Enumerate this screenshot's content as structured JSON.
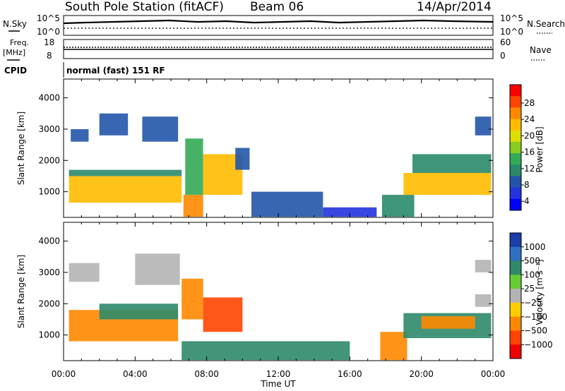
{
  "header": {
    "station": "South Pole Station (fitACF)",
    "beam": "Beam 06",
    "date": "14/Apr/2014"
  },
  "params": {
    "nsky_label": "N.Sky",
    "nsearch_label": "N.Search",
    "nsky_ticks": [
      "10^5",
      "10^0"
    ],
    "nsearch_ticks": [
      "10^5",
      "10^0"
    ],
    "freq_label_1": "Freq.",
    "freq_label_2": "[MHz]",
    "freq_ticks": [
      "18",
      "8"
    ],
    "nave_label": "Nave",
    "nave_ticks": [
      "60",
      "0"
    ],
    "cpid_label": "CPID",
    "cpid_value": "normal (fast) 151 RF"
  },
  "axes": {
    "ylabel": "Slant Range [km]",
    "yticks": [
      "4000",
      "3000",
      "2000",
      "1000"
    ],
    "xlabel": "Time UT",
    "xticks": [
      "00:00",
      "04:00",
      "08:00",
      "12:00",
      "16:00",
      "20:00",
      "00:00"
    ]
  },
  "colorbars": {
    "power_label": "Power [dB]",
    "power_ticks": [
      "28",
      "24",
      "20",
      "16",
      "12",
      "8",
      "4"
    ],
    "power_colors": [
      "#ff0000",
      "#ff4400",
      "#ff8800",
      "#ffbb00",
      "#dddd00",
      "#88cc22",
      "#33aa55",
      "#2a8a6a",
      "#2255aa",
      "#2233dd",
      "#0000ff"
    ],
    "velocity_label": "Velocity [m s⁻¹]",
    "velocity_ticks": [
      "1000",
      "500",
      "100",
      "25",
      "−25",
      "−100",
      "−500",
      "−1000"
    ],
    "velocity_colors": [
      "#1a3fa8",
      "#2f6fc0",
      "#2e8a6a",
      "#66cc33",
      "#b4b4b4",
      "#ffcc00",
      "#ff8800",
      "#ff4400",
      "#ee0000"
    ]
  },
  "chart_data": {
    "type": "heatmap",
    "x_unit": "hours UT",
    "y_unit": "km",
    "xlim": [
      0,
      24
    ],
    "ylim": [
      180,
      4600
    ],
    "power_panel": {
      "title": "Power",
      "regions": [
        {
          "t0": 0.3,
          "t1": 6.6,
          "r0": 650,
          "r1": 1500,
          "v": 22
        },
        {
          "t0": 0.3,
          "t1": 6.6,
          "r0": 1500,
          "r1": 1700,
          "v": 8
        },
        {
          "t0": 0.4,
          "t1": 1.4,
          "r0": 2600,
          "r1": 3000,
          "v": 6
        },
        {
          "t0": 2.0,
          "t1": 3.6,
          "r0": 2800,
          "r1": 3500,
          "v": 5
        },
        {
          "t0": 4.4,
          "t1": 6.4,
          "r0": 2600,
          "r1": 3400,
          "v": 5
        },
        {
          "t0": 6.7,
          "t1": 7.8,
          "r0": 200,
          "r1": 900,
          "v": 24
        },
        {
          "t0": 6.8,
          "t1": 7.8,
          "r0": 900,
          "r1": 2700,
          "v": 12
        },
        {
          "t0": 7.8,
          "t1": 10.0,
          "r0": 900,
          "r1": 2200,
          "v": 22
        },
        {
          "t0": 9.6,
          "t1": 10.4,
          "r0": 1700,
          "r1": 2400,
          "v": 6
        },
        {
          "t0": 10.5,
          "t1": 14.5,
          "r0": 200,
          "r1": 1000,
          "v": 6
        },
        {
          "t0": 14.5,
          "t1": 17.5,
          "r0": 200,
          "r1": 500,
          "v": 4
        },
        {
          "t0": 17.8,
          "t1": 19.6,
          "r0": 200,
          "r1": 900,
          "v": 10
        },
        {
          "t0": 19.0,
          "t1": 23.9,
          "r0": 900,
          "r1": 1600,
          "v": 20
        },
        {
          "t0": 19.5,
          "t1": 23.9,
          "r0": 1600,
          "r1": 2200,
          "v": 8
        },
        {
          "t0": 23.0,
          "t1": 23.9,
          "r0": 2800,
          "r1": 3400,
          "v": 5
        }
      ]
    },
    "velocity_panel": {
      "title": "Velocity",
      "regions": [
        {
          "t0": 0.3,
          "t1": 6.4,
          "r0": 800,
          "r1": 1800,
          "v": -150
        },
        {
          "t0": 2.0,
          "t1": 6.4,
          "r0": 1500,
          "r1": 2000,
          "v": 120
        },
        {
          "t0": 0.3,
          "t1": 2.0,
          "r0": 2700,
          "r1": 3300,
          "v": 20
        },
        {
          "t0": 4.0,
          "t1": 6.5,
          "r0": 2600,
          "r1": 3600,
          "v": 20
        },
        {
          "t0": 6.6,
          "t1": 7.8,
          "r0": 1500,
          "r1": 2800,
          "v": -300
        },
        {
          "t0": 7.8,
          "t1": 10.0,
          "r0": 1100,
          "r1": 2200,
          "v": -600
        },
        {
          "t0": 6.6,
          "t1": 10.5,
          "r0": 200,
          "r1": 800,
          "v": 200
        },
        {
          "t0": 10.5,
          "t1": 16.0,
          "r0": 200,
          "r1": 800,
          "v": 150
        },
        {
          "t0": 17.7,
          "t1": 19.2,
          "r0": 200,
          "r1": 1100,
          "v": -200
        },
        {
          "t0": 19.0,
          "t1": 23.9,
          "r0": 900,
          "r1": 1700,
          "v": 200
        },
        {
          "t0": 20.0,
          "t1": 23.0,
          "r0": 1200,
          "r1": 1600,
          "v": -150
        },
        {
          "t0": 23.0,
          "t1": 23.9,
          "r0": 1900,
          "r1": 2300,
          "v": 0
        },
        {
          "t0": 23.0,
          "t1": 23.9,
          "r0": 3000,
          "r1": 3400,
          "v": 0
        }
      ]
    }
  }
}
